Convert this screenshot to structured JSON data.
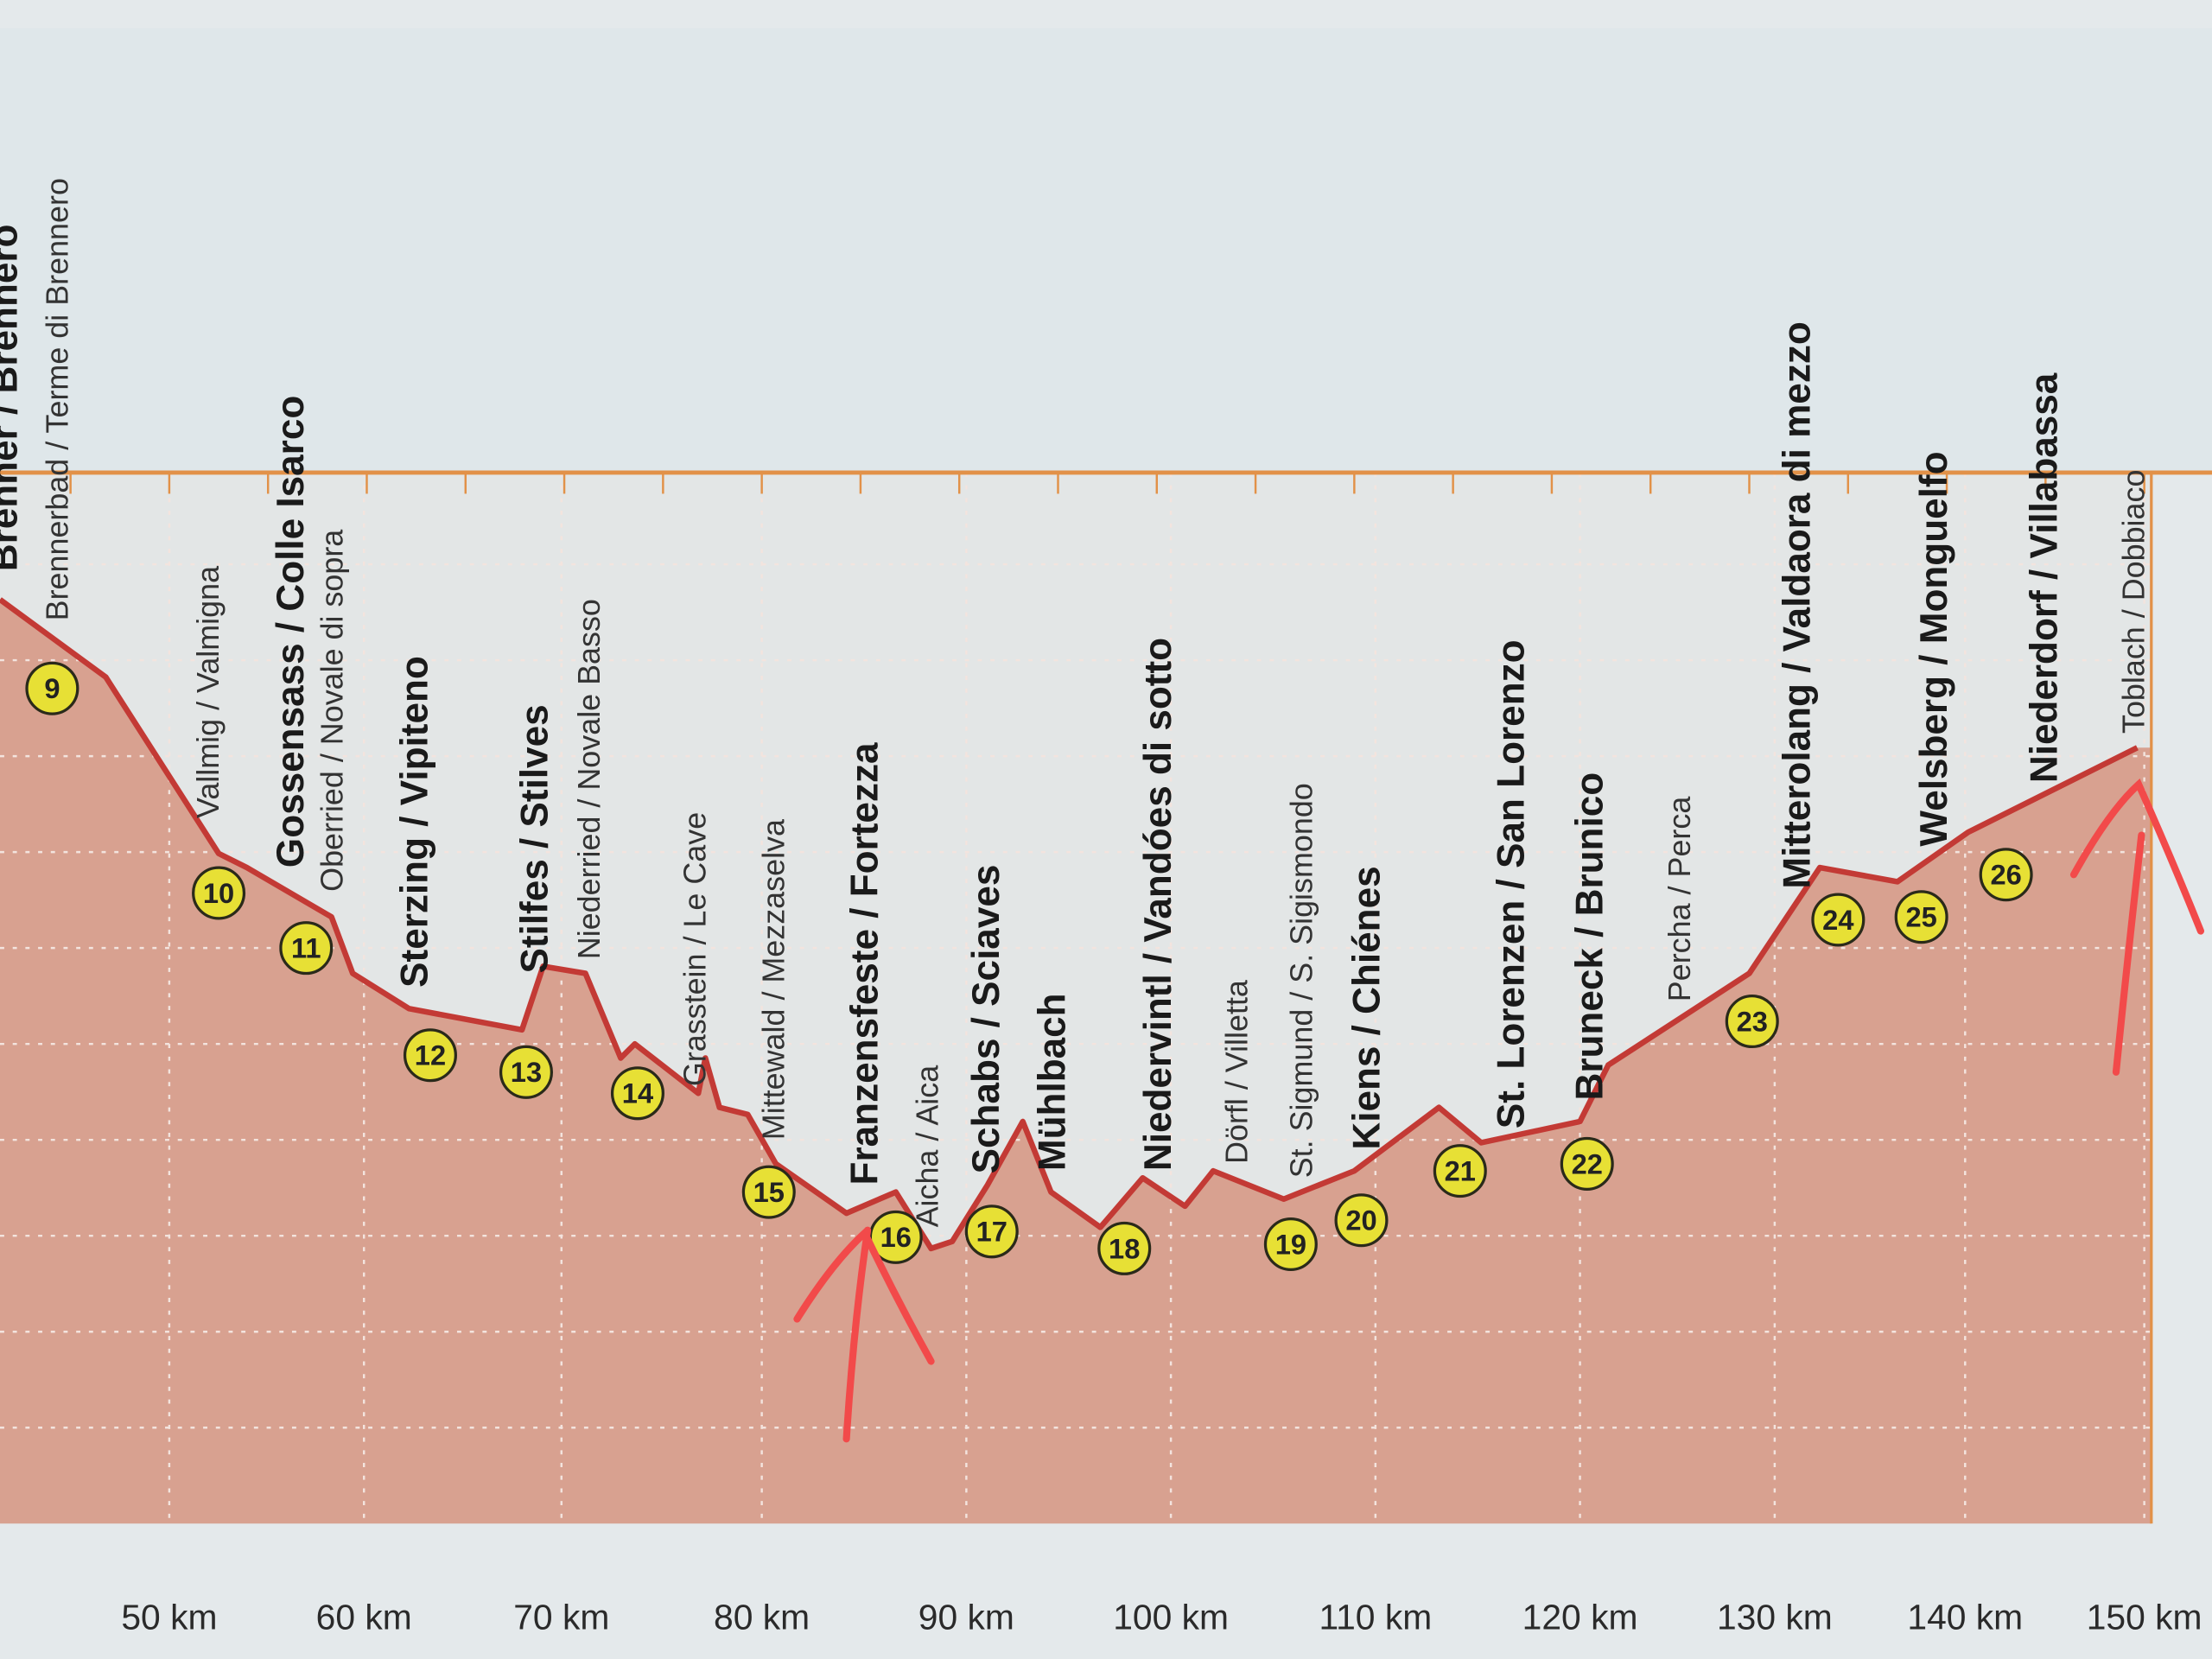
{
  "places": [
    {
      "text": "Brenner / Brennero",
      "bold": true
    },
    {
      "text": "Brennerbad / Terme di Brennero",
      "bold": false
    },
    {
      "text": "Vallmig / Valmigna",
      "bold": false
    },
    {
      "text": "Gossensass / Colle Isarco",
      "bold": true
    },
    {
      "text": "Oberried / Novale di sopra",
      "bold": false
    },
    {
      "text": "Sterzing / Vipiteno",
      "bold": true
    },
    {
      "text": "Stilfes / Stilves",
      "bold": true
    },
    {
      "text": "Niederried / Novale Basso",
      "bold": false
    },
    {
      "text": "Grasstein / Le Cave",
      "bold": false
    },
    {
      "text": "Mittewald / Mezzaselva",
      "bold": false
    },
    {
      "text": "Franzensfeste / Fortezza",
      "bold": true
    },
    {
      "text": "Aicha / Aica",
      "bold": false
    },
    {
      "text": "Schabs / Sciaves",
      "bold": true
    },
    {
      "text": "Mühlbach",
      "bold": true
    },
    {
      "text": "Niedervintl / Vandóes di sotto",
      "bold": true
    },
    {
      "text": "Dörfl / Villetta",
      "bold": false
    },
    {
      "text": "St. Sigmund / S. Sigismondo",
      "bold": false
    },
    {
      "text": "Kiens / Chiénes",
      "bold": true
    },
    {
      "text": "St. Lorenzen / San Lorenzo",
      "bold": true
    },
    {
      "text": "Bruneck / Brunico",
      "bold": true
    },
    {
      "text": "Percha / Perca",
      "bold": false
    },
    {
      "text": "Mitterolang / Valdaora di mezzo",
      "bold": true
    },
    {
      "text": "Welsberg / Monguelfo",
      "bold": true
    },
    {
      "text": "Niederdorf / Villabassa",
      "bold": true
    },
    {
      "text": "Toblach / Dobbiaco",
      "bold": false
    }
  ],
  "stops": [
    "9",
    "10",
    "11",
    "12",
    "13",
    "14",
    "15",
    "16",
    "17",
    "18",
    "19",
    "20",
    "21",
    "22",
    "23",
    "24",
    "25",
    "26"
  ],
  "km_axis": [
    "50 km",
    "60 km",
    "70 km",
    "80 km",
    "90 km",
    "100 km",
    "110 km",
    "120 km",
    "130 km",
    "140 km",
    "150 km"
  ]
}
